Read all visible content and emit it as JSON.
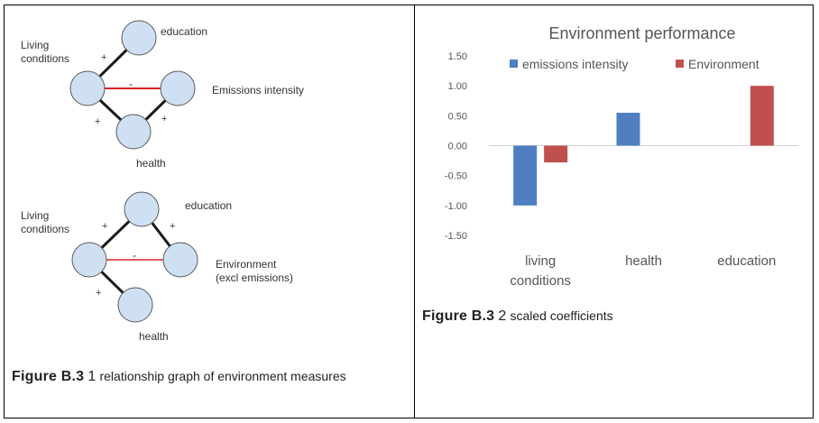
{
  "graph1": {
    "nodes": {
      "top": "education",
      "left": "Living\nconditions",
      "right": "Emissions intensity",
      "bottom": "health"
    },
    "edges": {
      "left_top": "+",
      "left_right": "-",
      "left_bottom": "+",
      "right_bottom": "+"
    }
  },
  "graph2": {
    "nodes": {
      "top": "education",
      "left": "Living\nconditions",
      "right": "Environment\n(excl emissions)",
      "bottom": "health"
    },
    "edges": {
      "left_top": "+",
      "top_right": "+",
      "left_right": "-",
      "left_bottom": "+"
    }
  },
  "colors": {
    "node_fill": "#cfe0f3",
    "node_stroke": "#5a5a5a",
    "positive_edge": "#1a1a1a",
    "negative_edge": "#e02020",
    "series_blue": "#4f7fc1",
    "series_red": "#c0504d"
  },
  "caption_left": {
    "label": "Figure B.3",
    "number": "1",
    "text": "relationship graph of environment measures"
  },
  "caption_right": {
    "label": "Figure B.3",
    "number": "2",
    "text": "scaled coefficients"
  },
  "chart_data": {
    "type": "bar",
    "title": "Environment performance",
    "categories": [
      "living\nconditions",
      "health",
      "education"
    ],
    "series": [
      {
        "name": "emissions intensity",
        "values": [
          -1.0,
          0.55,
          null
        ],
        "color": "#4f7fc1"
      },
      {
        "name": "Environment",
        "values": [
          -0.28,
          null,
          1.0
        ],
        "color": "#c0504d"
      }
    ],
    "ylim": [
      -1.5,
      1.5
    ],
    "yticks": [
      "1.50",
      "1.00",
      "0.50",
      "0.00",
      "-0.50",
      "-1.00",
      "-1.50"
    ],
    "ytick_values": [
      1.5,
      1.0,
      0.5,
      0.0,
      -0.5,
      -1.0,
      -1.5
    ],
    "legend_position": "top",
    "grid": false
  }
}
